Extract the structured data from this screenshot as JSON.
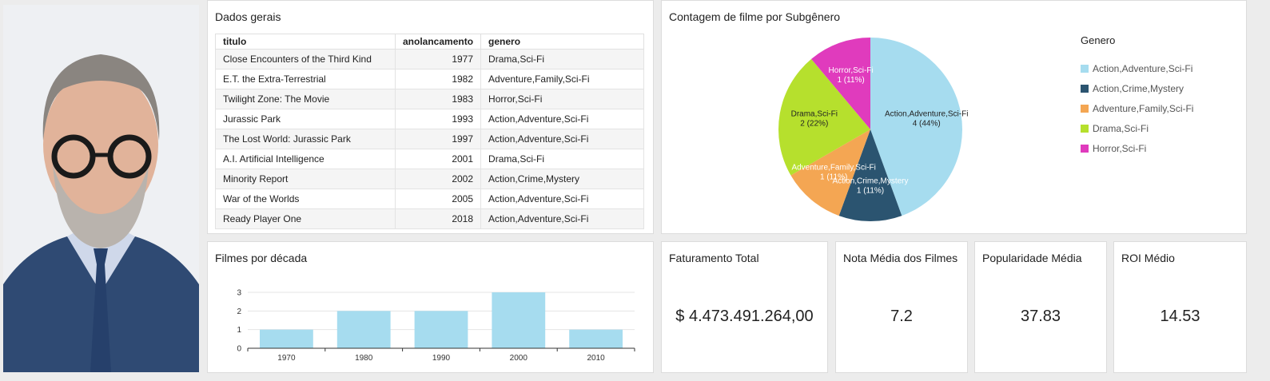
{
  "table": {
    "title": "Dados gerais",
    "columns": [
      "titulo",
      "anolancamento",
      "genero"
    ],
    "rows": [
      [
        "Close Encounters of the Third Kind",
        "1977",
        "Drama,Sci-Fi"
      ],
      [
        "E.T. the Extra-Terrestrial",
        "1982",
        "Adventure,Family,Sci-Fi"
      ],
      [
        "Twilight Zone: The Movie",
        "1983",
        "Horror,Sci-Fi"
      ],
      [
        "Jurassic Park",
        "1993",
        "Action,Adventure,Sci-Fi"
      ],
      [
        "The Lost World: Jurassic Park",
        "1997",
        "Action,Adventure,Sci-Fi"
      ],
      [
        "A.I. Artificial Intelligence",
        "2001",
        "Drama,Sci-Fi"
      ],
      [
        "Minority Report",
        "2002",
        "Action,Crime,Mystery"
      ],
      [
        "War of the Worlds",
        "2005",
        "Action,Adventure,Sci-Fi"
      ],
      [
        "Ready Player One",
        "2018",
        "Action,Adventure,Sci-Fi"
      ]
    ]
  },
  "kpis": [
    {
      "label": "Faturamento Total",
      "value": "$ 4.473.491.264,00"
    },
    {
      "label": "Nota Média dos Filmes",
      "value": "7.2"
    },
    {
      "label": "Popularidade Média",
      "value": "37.83"
    },
    {
      "label": "ROI Médio",
      "value": "14.53"
    }
  ],
  "chart_data": [
    {
      "type": "pie",
      "title": "Contagem de filme por Subgênero",
      "legend_title": "Genero",
      "legend_position": "right",
      "slices": [
        {
          "label": "Action,Adventure,Sci-Fi",
          "value": 4,
          "label_text": "4 (44%)",
          "color": "#a6dcef"
        },
        {
          "label": "Action,Crime,Mystery",
          "value": 1,
          "label_text": "1 (11%)",
          "color": "#2b5470"
        },
        {
          "label": "Adventure,Family,Sci-Fi",
          "value": 1,
          "label_text": "1 (11%)",
          "color": "#f4a653"
        },
        {
          "label": "Drama,Sci-Fi",
          "value": 2,
          "label_text": "2 (22%)",
          "color": "#b6e02d"
        },
        {
          "label": "Horror,Sci-Fi",
          "value": 1,
          "label_text": "1 (11%)",
          "color": "#e03bbd"
        }
      ]
    },
    {
      "type": "bar",
      "title": "Filmes por década",
      "categories": [
        "1970",
        "1980",
        "1990",
        "2000",
        "2010"
      ],
      "values": [
        1,
        2,
        2,
        3,
        1
      ],
      "ylim": [
        0,
        3
      ],
      "yticks": [
        0,
        1,
        2,
        3
      ],
      "bar_color": "#a6dcef",
      "grid": true
    }
  ]
}
